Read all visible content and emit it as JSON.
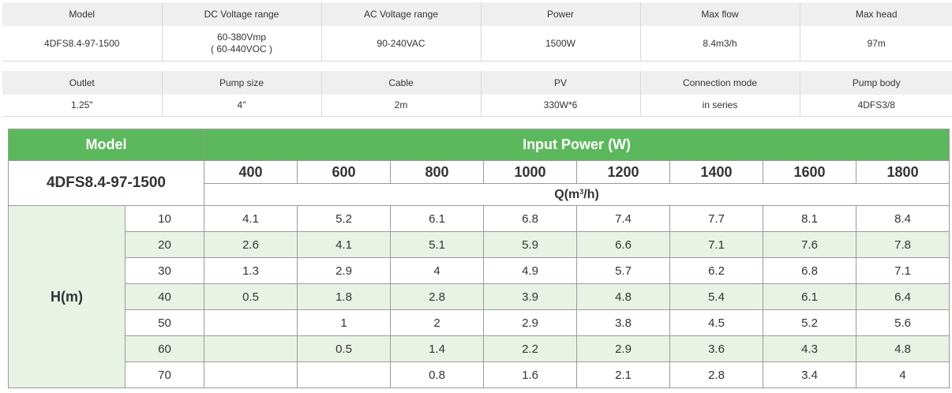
{
  "spec1": {
    "headers": [
      "Model",
      "DC Voltage range",
      "AC Voltage range",
      "Power",
      "Max flow",
      "Max head"
    ],
    "model": "4DFS8.4-97-1500",
    "dc_line1": "60-380Vmp",
    "dc_line2": "( 60-440VOC )",
    "ac": "90-240VAC",
    "power": "1500W",
    "max_flow": "8.4m3/h",
    "max_head": "97m"
  },
  "spec2": {
    "headers": [
      "Outlet",
      "Pump size",
      "Cable",
      "PV",
      "Connection mode",
      "Pump body"
    ],
    "values": [
      "1.25\"",
      "4\"",
      "2m",
      "330W*6",
      "in series",
      "4DFS3/8"
    ]
  },
  "performance": {
    "model_label": "Model",
    "input_power_label": "Input Power (W)",
    "model_name": "4DFS8.4-97-1500",
    "powers": [
      "400",
      "600",
      "800",
      "1000",
      "1200",
      "1400",
      "1600",
      "1800"
    ],
    "q_label_prefix": "Q(m",
    "q_label_sup": "3",
    "q_label_suffix": "/h)",
    "h_label": "H(m)",
    "rows": [
      {
        "head": "10",
        "values": [
          "4.1",
          "5.2",
          "6.1",
          "6.8",
          "7.4",
          "7.7",
          "8.1",
          "8.4"
        ]
      },
      {
        "head": "20",
        "values": [
          "2.6",
          "4.1",
          "5.1",
          "5.9",
          "6.6",
          "7.1",
          "7.6",
          "7.8"
        ]
      },
      {
        "head": "30",
        "values": [
          "1.3",
          "2.9",
          "4",
          "4.9",
          "5.7",
          "6.2",
          "6.8",
          "7.1"
        ]
      },
      {
        "head": "40",
        "values": [
          "0.5",
          "1.8",
          "2.8",
          "3.9",
          "4.8",
          "5.4",
          "6.1",
          "6.4"
        ]
      },
      {
        "head": "50",
        "values": [
          "",
          "1",
          "2",
          "2.9",
          "3.8",
          "4.5",
          "5.2",
          "5.6"
        ]
      },
      {
        "head": "60",
        "values": [
          "",
          "0.5",
          "1.4",
          "2.2",
          "2.9",
          "3.6",
          "4.3",
          "4.8"
        ]
      },
      {
        "head": "70",
        "values": [
          "",
          "",
          "0.8",
          "1.6",
          "2.1",
          "2.8",
          "3.4",
          "4"
        ]
      }
    ]
  },
  "colors": {
    "header_green": "#5cb85c",
    "row_tint": "#e8f3e6",
    "spec_header_bg": "#efefef"
  }
}
